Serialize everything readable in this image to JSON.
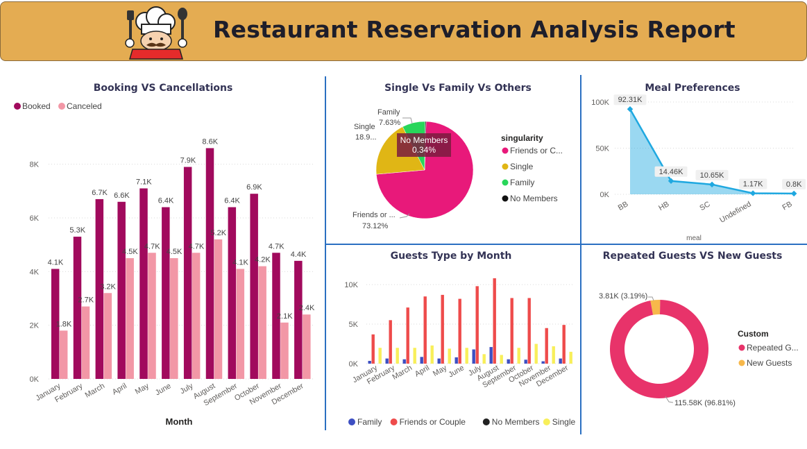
{
  "header": {
    "title": "Restaurant Reservation Analysis Report",
    "bg_color": "#e4ac52"
  },
  "chart_data": [
    {
      "id": "booking",
      "type": "bar",
      "title": "Booking VS Cancellations",
      "xlabel": "Month",
      "ylabel": "",
      "categories": [
        "January",
        "February",
        "March",
        "April",
        "May",
        "June",
        "July",
        "August",
        "September",
        "October",
        "November",
        "December"
      ],
      "series": [
        {
          "name": "Booked",
          "color": "#a10a5d",
          "values": [
            4100,
            5300,
            6700,
            6600,
            7100,
            6400,
            7900,
            8600,
            6400,
            6900,
            4700,
            4400
          ],
          "labels": [
            "4.1K",
            "5.3K",
            "6.7K",
            "6.6K",
            "7.1K",
            "6.4K",
            "7.9K",
            "8.6K",
            "6.4K",
            "6.9K",
            "4.7K",
            "4.4K"
          ]
        },
        {
          "name": "Canceled",
          "color": "#f297a6",
          "values": [
            1800,
            2700,
            3200,
            4500,
            4700,
            4500,
            4700,
            5200,
            4100,
            4200,
            2100,
            2400
          ],
          "labels": [
            "1.8K",
            "2.7K",
            "3.2K",
            "4.5K",
            "4.7K",
            "4.5K",
            "4.7K",
            "5.2K",
            "4.1K",
            "4.2K",
            "2.1K",
            "2.4K"
          ]
        }
      ],
      "yticks": [
        "0K",
        "2K",
        "4K",
        "6K",
        "8K"
      ],
      "ylim": [
        0,
        9000
      ],
      "legend": "top-left"
    },
    {
      "id": "singularity",
      "type": "pie",
      "title": "Single Vs Family Vs Others",
      "legend_title": "singularity",
      "slices": [
        {
          "name": "Friends or C...",
          "value": 73.12,
          "color": "#e8197a",
          "label_name": "Friends or ...",
          "label_pct": "73.12%"
        },
        {
          "name": "Single",
          "value": 18.91,
          "color": "#e0b615",
          "label_name": "Single",
          "label_pct": "18.9..."
        },
        {
          "name": "Family",
          "value": 7.63,
          "color": "#28d65a",
          "label_name": "Family",
          "label_pct": "7.63%"
        },
        {
          "name": "No Members",
          "value": 0.34,
          "color": "#111111",
          "label_name": "",
          "label_pct": ""
        }
      ],
      "tooltip": {
        "name": "No Members",
        "value": "0.34%"
      },
      "legend": "right"
    },
    {
      "id": "meal",
      "type": "area",
      "title": "Meal Preferences",
      "xlabel": "meal",
      "categories": [
        "BB",
        "HB",
        "SC",
        "Undefined",
        "FB"
      ],
      "values": [
        92310,
        14460,
        10650,
        1170,
        800
      ],
      "labels": [
        "92.31K",
        "14.46K",
        "10.65K",
        "1.17K",
        "0.8K"
      ],
      "yticks": [
        "0K",
        "50K",
        "100K"
      ],
      "ylim": [
        0,
        100000
      ],
      "color": "#1fa8e0"
    },
    {
      "id": "guests",
      "type": "bar",
      "title": "Guests Type by Month",
      "categories": [
        "January",
        "February",
        "March",
        "April",
        "May",
        "June",
        "July",
        "August",
        "September",
        "October",
        "November",
        "December"
      ],
      "series": [
        {
          "name": "Family",
          "color": "#3d4fc2",
          "values": [
            350,
            650,
            550,
            850,
            650,
            800,
            1800,
            2100,
            550,
            500,
            300,
            650
          ]
        },
        {
          "name": "Friends or Couple",
          "color": "#ee4b4b",
          "values": [
            3700,
            5500,
            7100,
            8500,
            8700,
            8200,
            9800,
            10800,
            8300,
            8300,
            4500,
            4900
          ]
        },
        {
          "name": "No Members",
          "color": "#222222",
          "values": [
            0,
            0,
            0,
            0,
            0,
            0,
            0,
            0,
            0,
            0,
            0,
            0
          ]
        },
        {
          "name": "Single",
          "color": "#f8ef5a",
          "values": [
            2000,
            2000,
            2000,
            2300,
            1900,
            2000,
            1200,
            1100,
            2000,
            2500,
            2200,
            1500
          ]
        }
      ],
      "yticks": [
        "0K",
        "5K",
        "10K"
      ],
      "ylim": [
        0,
        11500
      ],
      "legend": "bottom"
    },
    {
      "id": "repeated",
      "type": "pie",
      "title": "Repeated Guests VS New Guests",
      "legend_title": "Custom",
      "slices": [
        {
          "name": "Repeated G...",
          "value": 96.81,
          "color": "#e8336a",
          "label": "115.58K (96.81%)"
        },
        {
          "name": "New Guests",
          "value": 3.19,
          "color": "#f7b84b",
          "label": "3.81K (3.19%)"
        }
      ],
      "legend": "right"
    }
  ]
}
